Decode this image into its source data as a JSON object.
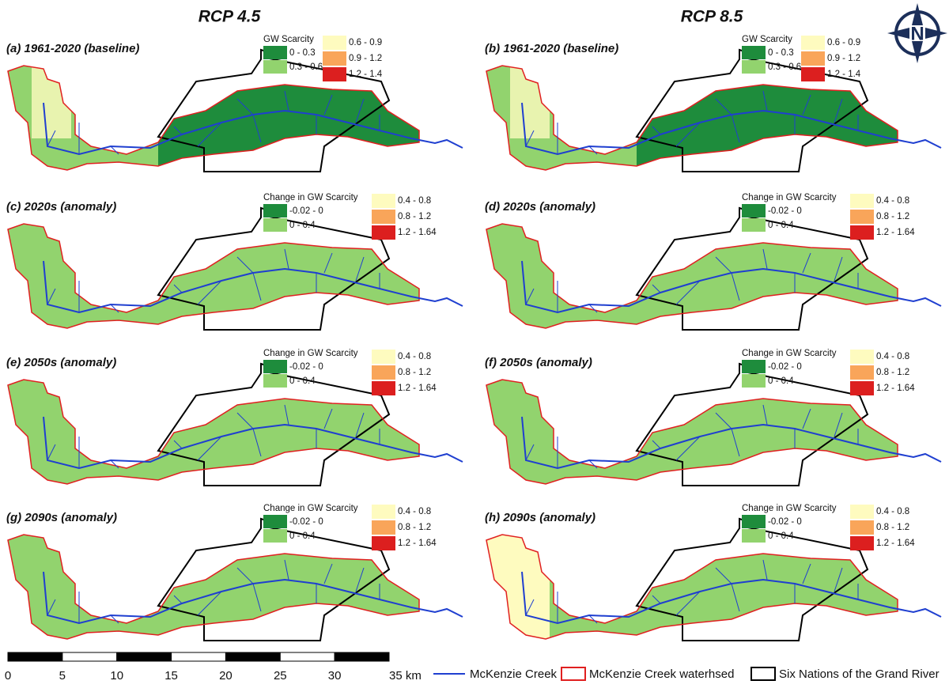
{
  "column_titles": [
    "RCP 4.5",
    "RCP 8.5"
  ],
  "north_arrow": "N",
  "panels": [
    {
      "label": "(a) 1961-2020 (baseline)",
      "legend_title": "GW Scarcity",
      "kind": "baseline",
      "legend": [
        {
          "label": "0 - 0.3",
          "color": "#1e8c3c"
        },
        {
          "label": "0.3 - 0.6",
          "color": "#92d36e"
        },
        {
          "label": "0.6 - 0.9",
          "color": "#fefbbf"
        },
        {
          "label": "0.9 - 1.2",
          "color": "#f9a55a"
        },
        {
          "label": "1.2 - 1.4",
          "color": "#dc1f1f"
        }
      ]
    },
    {
      "label": "(b) 1961-2020 (baseline)",
      "legend_title": "GW Scarcity",
      "kind": "baseline",
      "legend": [
        {
          "label": "0 - 0.3",
          "color": "#1e8c3c"
        },
        {
          "label": "0.3 - 0.6",
          "color": "#92d36e"
        },
        {
          "label": "0.6 - 0.9",
          "color": "#fefbbf"
        },
        {
          "label": "0.9 - 1.2",
          "color": "#f9a55a"
        },
        {
          "label": "1.2 - 1.4",
          "color": "#dc1f1f"
        }
      ]
    },
    {
      "label": "(c) 2020s (anomaly)",
      "legend_title": "Change in GW Scarcity",
      "kind": "anomaly",
      "legend": [
        {
          "label": "-0.02 - 0",
          "color": "#1e8c3c"
        },
        {
          "label": "0 - 0.4",
          "color": "#92d36e"
        },
        {
          "label": "0.4 - 0.8",
          "color": "#fefbbf"
        },
        {
          "label": "0.8 - 1.2",
          "color": "#f9a55a"
        },
        {
          "label": "1.2 - 1.64",
          "color": "#dc1f1f"
        }
      ]
    },
    {
      "label": "(d) 2020s (anomaly)",
      "legend_title": "Change in GW Scarcity",
      "kind": "anomaly",
      "legend": [
        {
          "label": "-0.02 - 0",
          "color": "#1e8c3c"
        },
        {
          "label": "0 - 0.4",
          "color": "#92d36e"
        },
        {
          "label": "0.4 - 0.8",
          "color": "#fefbbf"
        },
        {
          "label": "0.8 - 1.2",
          "color": "#f9a55a"
        },
        {
          "label": "1.2 - 1.64",
          "color": "#dc1f1f"
        }
      ]
    },
    {
      "label": "(e) 2050s (anomaly)",
      "legend_title": "Change in GW Scarcity",
      "kind": "anomaly",
      "legend": [
        {
          "label": "-0.02 - 0",
          "color": "#1e8c3c"
        },
        {
          "label": "0 - 0.4",
          "color": "#92d36e"
        },
        {
          "label": "0.4 - 0.8",
          "color": "#fefbbf"
        },
        {
          "label": "0.8 - 1.2",
          "color": "#f9a55a"
        },
        {
          "label": "1.2 - 1.64",
          "color": "#dc1f1f"
        }
      ]
    },
    {
      "label": "(f) 2050s (anomaly)",
      "legend_title": "Change in GW Scarcity",
      "kind": "anomaly",
      "legend": [
        {
          "label": "-0.02 - 0",
          "color": "#1e8c3c"
        },
        {
          "label": "0 - 0.4",
          "color": "#92d36e"
        },
        {
          "label": "0.4 - 0.8",
          "color": "#fefbbf"
        },
        {
          "label": "0.8 - 1.2",
          "color": "#f9a55a"
        },
        {
          "label": "1.2 - 1.64",
          "color": "#dc1f1f"
        }
      ]
    },
    {
      "label": "(g) 2090s (anomaly)",
      "legend_title": "Change in GW Scarcity",
      "kind": "anomaly",
      "legend": [
        {
          "label": "-0.02 - 0",
          "color": "#1e8c3c"
        },
        {
          "label": "0 - 0.4",
          "color": "#92d36e"
        },
        {
          "label": "0.4 - 0.8",
          "color": "#fefbbf"
        },
        {
          "label": "0.8 - 1.2",
          "color": "#f9a55a"
        },
        {
          "label": "1.2 - 1.64",
          "color": "#dc1f1f"
        }
      ]
    },
    {
      "label": "(h) 2090s (anomaly)",
      "legend_title": "Change in GW Scarcity",
      "kind": "anomaly-west",
      "legend": [
        {
          "label": "-0.02 - 0",
          "color": "#1e8c3c"
        },
        {
          "label": "0 - 0.4",
          "color": "#92d36e"
        },
        {
          "label": "0.4 - 0.8",
          "color": "#fefbbf"
        },
        {
          "label": "0.8 - 1.2",
          "color": "#f9a55a"
        },
        {
          "label": "1.2 - 1.64",
          "color": "#dc1f1f"
        }
      ]
    }
  ],
  "scale_bar": {
    "range": [
      0,
      35
    ],
    "ticks": [
      0,
      5,
      10,
      15,
      20,
      25,
      30,
      {
        "value": 35,
        "label": "35 km"
      }
    ]
  },
  "map_legend": [
    {
      "label": "McKenzie Creek",
      "color": "#1f3fd0"
    },
    {
      "label": "McKenzie Creek waterhsed",
      "color": "#e02020"
    },
    {
      "label": "Six Nations of the Grand River",
      "color": "#000000"
    }
  ]
}
